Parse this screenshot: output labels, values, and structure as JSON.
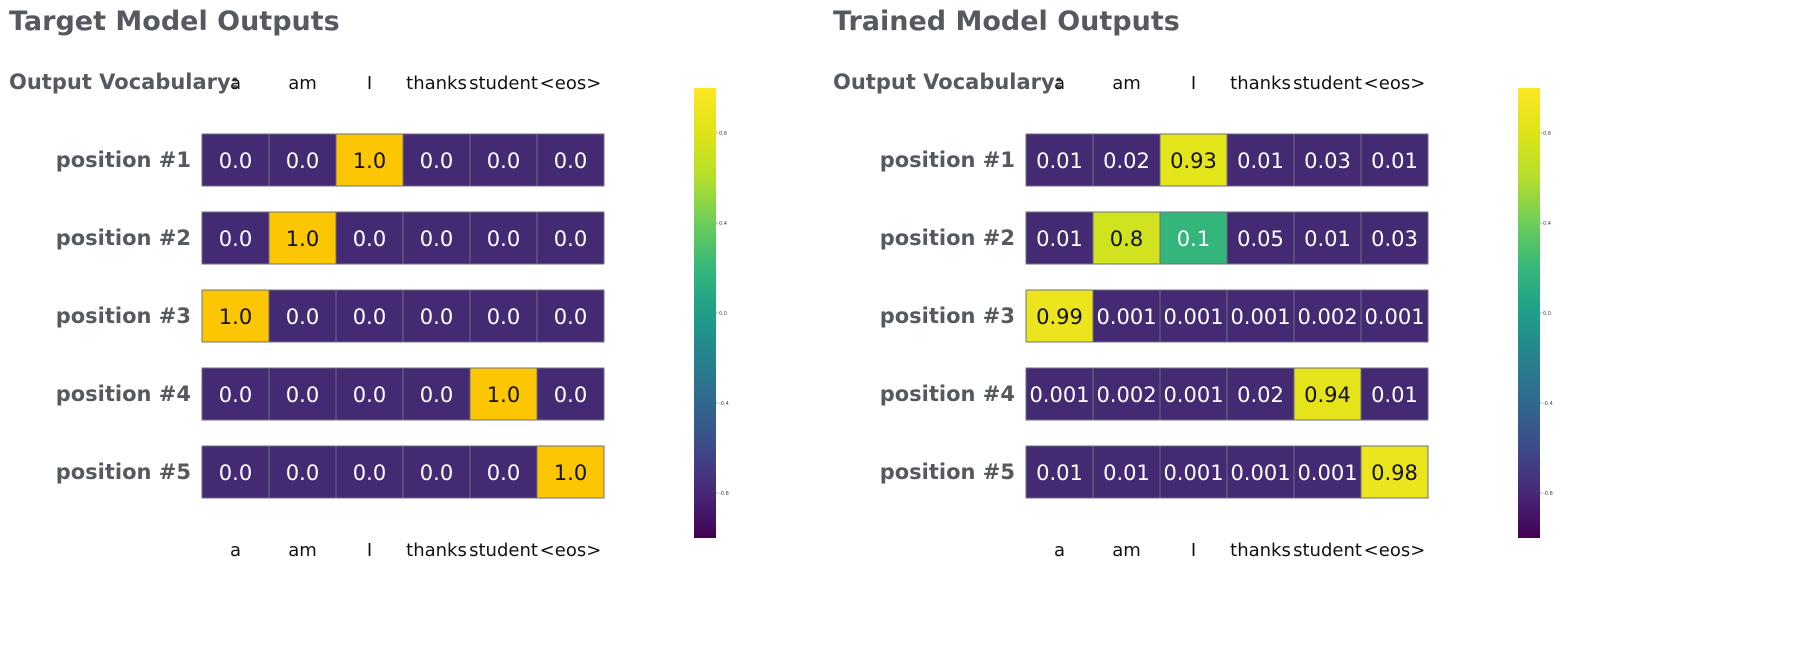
{
  "colors": {
    "low": "#432a73",
    "high": "#fcc702",
    "title_text": "#555a60",
    "cell_border": "#6f6f7f"
  },
  "chart_data": [
    {
      "type": "heatmap",
      "title": "Target Model Outputs",
      "vocab_label": "Output Vocabulary:",
      "columns": [
        "a",
        "am",
        "I",
        "thanks",
        "student",
        "<eos>"
      ],
      "rows": [
        "position #1",
        "position #2",
        "position #3",
        "position #4",
        "position #5"
      ],
      "values": [
        [
          "0.0",
          "0.0",
          "1.0",
          "0.0",
          "0.0",
          "0.0"
        ],
        [
          "0.0",
          "1.0",
          "0.0",
          "0.0",
          "0.0",
          "0.0"
        ],
        [
          "1.0",
          "0.0",
          "0.0",
          "0.0",
          "0.0",
          "0.0"
        ],
        [
          "0.0",
          "0.0",
          "0.0",
          "0.0",
          "1.0",
          "0.0"
        ],
        [
          "0.0",
          "0.0",
          "0.0",
          "0.0",
          "0.0",
          "1.0"
        ]
      ],
      "colorbar_ticks": [
        "0.8",
        "0.4",
        "0.0",
        "-0.4",
        "-0.8"
      ]
    },
    {
      "type": "heatmap",
      "title": "Trained Model Outputs",
      "vocab_label": "Output Vocabulary:",
      "columns": [
        "a",
        "am",
        "I",
        "thanks",
        "student",
        "<eos>"
      ],
      "rows": [
        "position #1",
        "position #2",
        "position #3",
        "position #4",
        "position #5"
      ],
      "values": [
        [
          "0.01",
          "0.02",
          "0.93",
          "0.01",
          "0.03",
          "0.01"
        ],
        [
          "0.01",
          "0.8",
          "0.1",
          "0.05",
          "0.01",
          "0.03"
        ],
        [
          "0.99",
          "0.001",
          "0.001",
          "0.001",
          "0.002",
          "0.001"
        ],
        [
          "0.001",
          "0.002",
          "0.001",
          "0.02",
          "0.94",
          "0.01"
        ],
        [
          "0.01",
          "0.01",
          "0.001",
          "0.001",
          "0.001",
          "0.98"
        ]
      ],
      "colorbar_ticks": [
        "0.8",
        "0.4",
        "0.0",
        "-0.4",
        "-0.8"
      ]
    }
  ]
}
